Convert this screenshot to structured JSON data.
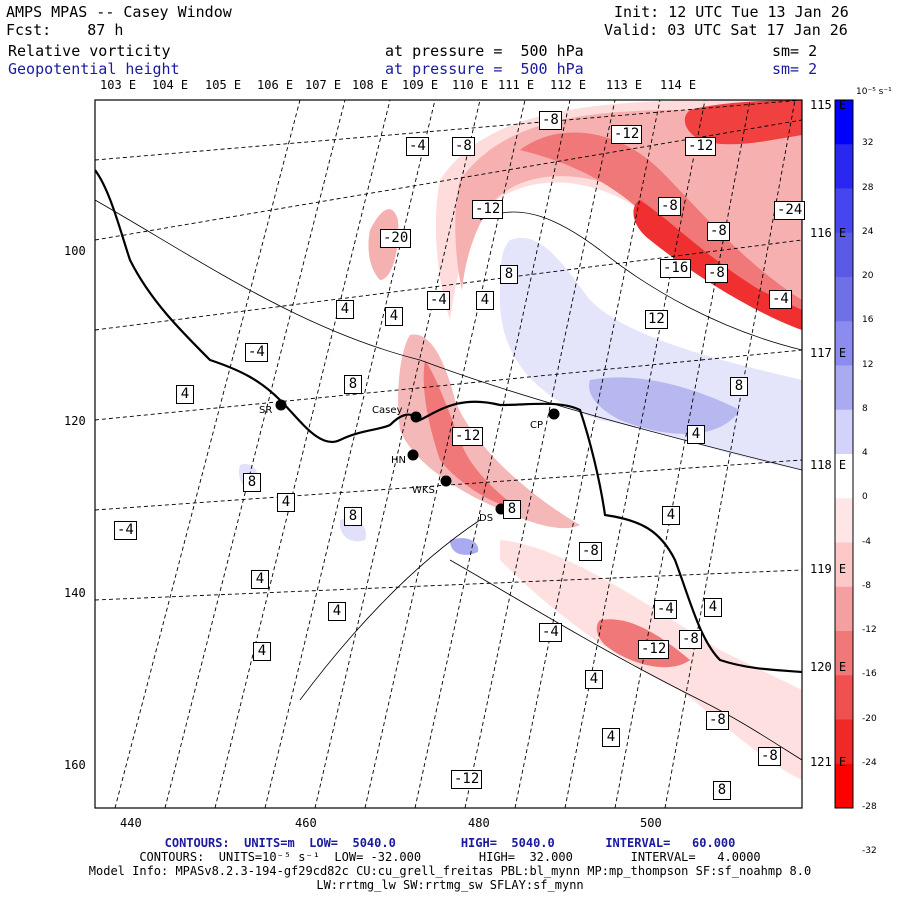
{
  "header": {
    "model": "AMPS MPAS -- Casey Window",
    "init": "Init: 12 UTC Tue 13 Jan 26",
    "fcst": "Fcst:    87 h",
    "valid": "Valid: 03 UTC Sat 17 Jan 26",
    "field1_name": "Relative vorticity",
    "field1_level": "at pressure =  500 hPa",
    "field1_sm": "sm= 2",
    "field2_name": "Geopotential height",
    "field2_level": "at pressure =  500 hPa",
    "field2_sm": "sm= 2"
  },
  "top_longitudes": [
    "103 E",
    "104 E",
    "105 E",
    "106 E",
    "107 E",
    "108 E",
    "109 E",
    "110 E",
    "111 E",
    "112 E",
    "113 E",
    "114 E"
  ],
  "right_longitudes": [
    "115 E",
    "116 E",
    "117 E",
    "118 E",
    "119 E",
    "120 E",
    "121 E"
  ],
  "x_axis_ticks": [
    "440",
    "460",
    "480",
    "500"
  ],
  "y_axis_ticks": [
    "100",
    "120",
    "140",
    "160"
  ],
  "stations": [
    {
      "id": "SR",
      "label": "SR"
    },
    {
      "id": "Casey",
      "label": "Casey"
    },
    {
      "id": "HN",
      "label": "HN"
    },
    {
      "id": "WKS",
      "label": "WKS"
    },
    {
      "id": "DS",
      "label": "DS"
    },
    {
      "id": "CP",
      "label": "CP"
    }
  ],
  "contour_labels": [
    "-4",
    "-8",
    "-8",
    "-12",
    "-12",
    "-12",
    "-8",
    "-8",
    "-24",
    "-20",
    "-16",
    "-8",
    "-4",
    "-4",
    "4",
    "8",
    "4",
    "4",
    "-4",
    "8",
    "12",
    "8",
    "-12",
    "4",
    "8",
    "4",
    "-8",
    "8",
    "-4",
    "8",
    "-8",
    "-4",
    "4",
    "4",
    "4",
    "4",
    "-4",
    "-12",
    "-8",
    "4",
    "4",
    "-8",
    "-12",
    "8",
    "4",
    "4"
  ],
  "colorbar": {
    "unit": "10⁻⁵ s⁻¹",
    "ticks": [
      "32",
      "28",
      "24",
      "20",
      "16",
      "12",
      "8",
      "4",
      "0",
      "-4",
      "-8",
      "-12",
      "-16",
      "-20",
      "-24",
      "-28",
      "-32"
    ],
    "colors": [
      "#0000ff",
      "#2828f0",
      "#4646f0",
      "#5a5ae6",
      "#7070e6",
      "#8c8cf0",
      "#aaaaf0",
      "#d2d2fa",
      "#ffffff",
      "#ffe6e6",
      "#ffc8c8",
      "#f5a0a0",
      "#f07878",
      "#f05050",
      "#f02828",
      "#ff0000"
    ]
  },
  "footer": {
    "line1": "CONTOURS:  UNITS=m  LOW=  5040.0         HIGH=  5040.0       INTERVAL=   60.000",
    "line2": "CONTOURS:  UNITS=10⁻⁵ s⁻¹  LOW= -32.000        HIGH=  32.000        INTERVAL=   4.0000",
    "line3": "Model Info: MPASv8.2.3-194-gf29cd82c CU:cu_grell_freitas PBL:bl_mynn MP:mp_thompson SF:sf_noahmp 8.0",
    "line4": "LW:rrtmg_lw SW:rrtmg_sw SFLAY:sf_mynn"
  }
}
